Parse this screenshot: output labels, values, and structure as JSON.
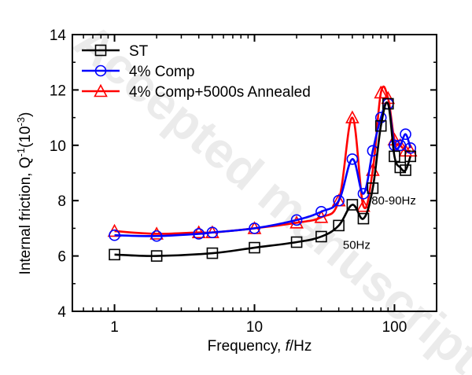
{
  "chart_data": {
    "type": "line",
    "xscale": "log",
    "xlim": [
      0.5,
      200
    ],
    "ylim": [
      4,
      14
    ],
    "xticks": [
      1,
      10,
      100
    ],
    "xtick_labels": [
      "1",
      "10",
      "100"
    ],
    "yticks": [
      4,
      6,
      8,
      10,
      12,
      14
    ],
    "ytick_labels": [
      "4",
      "6",
      "8",
      "10",
      "12",
      "14"
    ],
    "xlabel_parts": [
      "Frequency, ",
      "f",
      "/Hz"
    ],
    "ylabel_parts": [
      "Internal friction, Q",
      "-1",
      "(10",
      "-3",
      ")"
    ],
    "legend_position": "top-left",
    "watermark": "Accepted manuscript",
    "series": [
      {
        "name": "ST",
        "color": "#000000",
        "marker": "square",
        "x": [
          1,
          2,
          5,
          10,
          20,
          30,
          40,
          50,
          60,
          70,
          80,
          90,
          100,
          110,
          120,
          130
        ],
        "y": [
          6.05,
          6.0,
          6.1,
          6.3,
          6.5,
          6.7,
          7.1,
          7.85,
          7.35,
          8.45,
          10.7,
          11.5,
          9.6,
          9.2,
          9.1,
          9.6
        ]
      },
      {
        "name": "4% Comp",
        "color": "#0000ff",
        "marker": "circle",
        "x": [
          1,
          2,
          4,
          5,
          10,
          20,
          30,
          40,
          50,
          60,
          70,
          80,
          90,
          100,
          110,
          120,
          130
        ],
        "y": [
          6.75,
          6.72,
          6.8,
          6.85,
          7.0,
          7.3,
          7.6,
          8.0,
          9.5,
          8.25,
          9.8,
          11.0,
          11.5,
          10.0,
          10.0,
          10.4,
          9.9
        ]
      },
      {
        "name": "4% Comp+5000s Annealed",
        "color": "#ff0000",
        "marker": "triangle",
        "x": [
          1,
          2,
          4,
          5,
          10,
          20,
          30,
          40,
          50,
          60,
          70,
          80,
          90,
          100,
          110,
          120,
          130
        ],
        "y": [
          6.9,
          6.8,
          6.85,
          6.85,
          7.0,
          7.2,
          7.4,
          8.0,
          11.0,
          7.8,
          9.1,
          11.9,
          11.7,
          10.2,
          10.0,
          9.8,
          9.8
        ]
      }
    ],
    "annotations": [
      {
        "text": "50Hz",
        "x": 50,
        "y": 6.4
      },
      {
        "text": "80-90Hz",
        "x": 80,
        "y": 8.0
      }
    ]
  }
}
